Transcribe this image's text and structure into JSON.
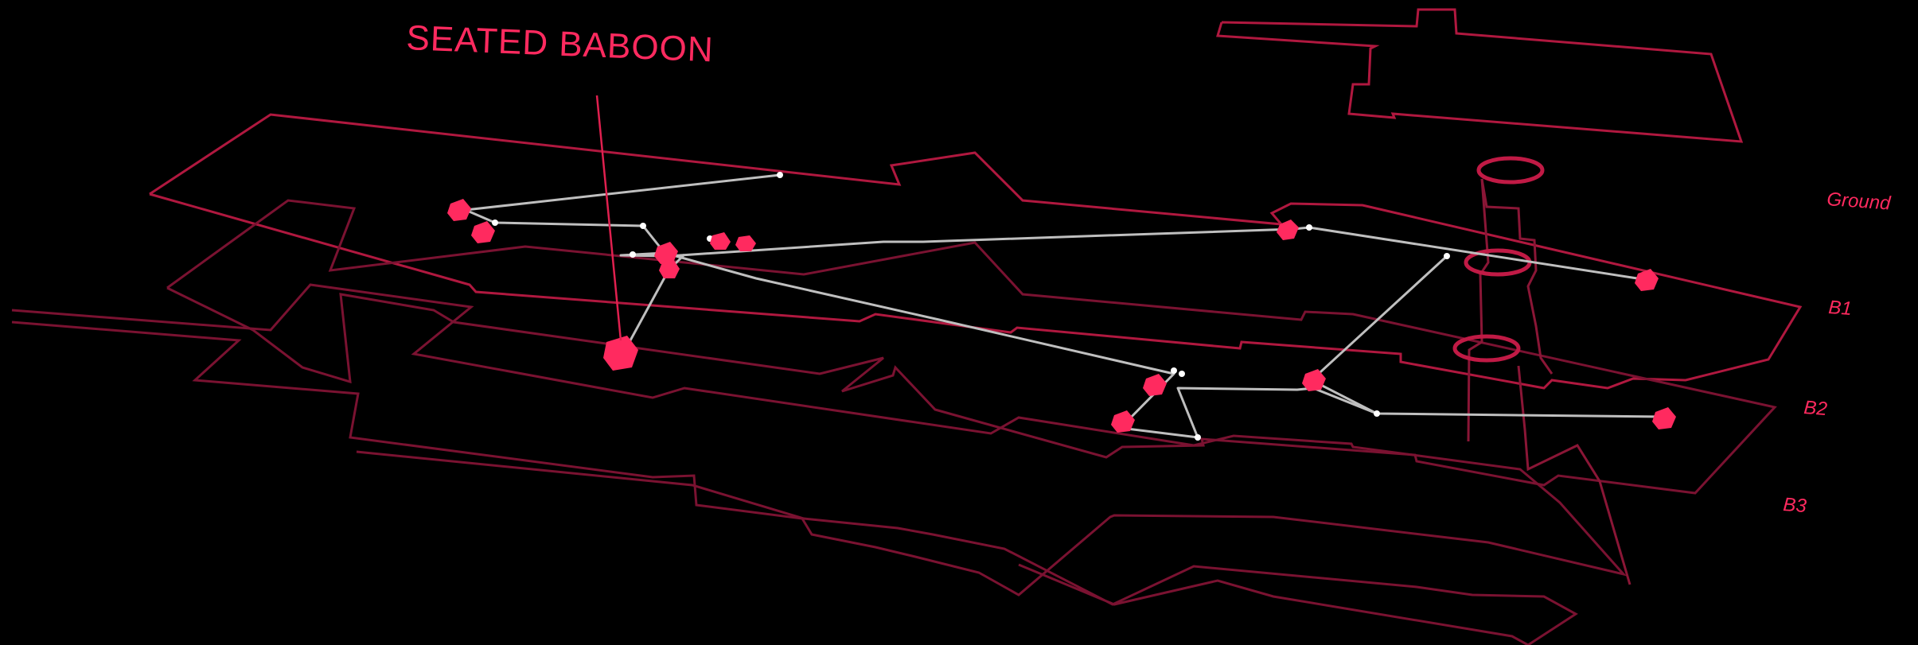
{
  "callout": {
    "label": "SEATED BABOON"
  },
  "floors": [
    {
      "key": "ground",
      "label": "Ground"
    },
    {
      "key": "b1",
      "label": "B1"
    },
    {
      "key": "b2",
      "label": "B2"
    },
    {
      "key": "b3",
      "label": "B3"
    }
  ],
  "colors": {
    "background": "#000000",
    "accent": "#ff2a5f",
    "outline": "#7a1231",
    "route": "#bfbfbf"
  }
}
